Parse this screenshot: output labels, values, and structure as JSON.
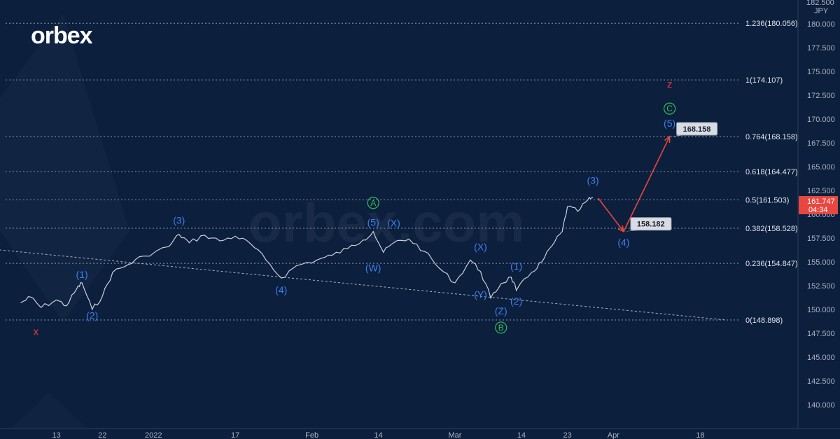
{
  "brand": {
    "logo_text": "orbex",
    "watermark_text": "orbex.com"
  },
  "currency_label": "JPY",
  "top_price_label": "182.500",
  "current_price": {
    "value": "161.747",
    "countdown": "04:34"
  },
  "colors": {
    "background": "#0c1f3d",
    "wave_blue": "#3f7ef0",
    "wave_red": "#e83b3b",
    "wave_green": "#2dbf5b",
    "price_tag": "#e8473f",
    "arrow": "#e8473f"
  },
  "chart_data": {
    "type": "line",
    "instrument_currency": "JPY",
    "y_axis": {
      "ylim": [
        137.5,
        182.5
      ],
      "ticks": [
        "140.000",
        "142.500",
        "145.000",
        "147.500",
        "150.000",
        "152.500",
        "155.000",
        "157.500",
        "160.000",
        "162.500",
        "165.000",
        "167.500",
        "170.000",
        "172.500",
        "175.000",
        "177.500",
        "180.000"
      ]
    },
    "x_axis": {
      "tick_labels": [
        "13",
        "22",
        "2022",
        "17",
        "Feb",
        "14",
        "Mar",
        "14",
        "23",
        "Apr",
        "18"
      ]
    },
    "price_path": [
      {
        "date": "2021-12-06",
        "price": 150.7
      },
      {
        "date": "2021-12-08",
        "price": 151.3
      },
      {
        "date": "2021-12-10",
        "price": 150.2
      },
      {
        "date": "2021-12-13",
        "price": 151.0
      },
      {
        "date": "2021-12-15",
        "price": 150.4
      },
      {
        "date": "2021-12-17",
        "price": 152.2
      },
      {
        "date": "2021-12-18",
        "price": 152.8
      },
      {
        "date": "2021-12-20",
        "price": 150.0
      },
      {
        "date": "2021-12-22",
        "price": 151.4
      },
      {
        "date": "2021-12-24",
        "price": 153.9
      },
      {
        "date": "2021-12-27",
        "price": 154.7
      },
      {
        "date": "2021-12-30",
        "price": 155.6
      },
      {
        "date": "2022-01-04",
        "price": 156.6
      },
      {
        "date": "2022-01-06",
        "price": 157.9
      },
      {
        "date": "2022-01-08",
        "price": 157.0
      },
      {
        "date": "2022-01-11",
        "price": 157.8
      },
      {
        "date": "2022-01-14",
        "price": 157.2
      },
      {
        "date": "2022-01-17",
        "price": 157.7
      },
      {
        "date": "2022-01-20",
        "price": 156.9
      },
      {
        "date": "2022-01-23",
        "price": 155.2
      },
      {
        "date": "2022-01-26",
        "price": 153.3
      },
      {
        "date": "2022-01-29",
        "price": 154.6
      },
      {
        "date": "2022-02-02",
        "price": 155.2
      },
      {
        "date": "2022-02-05",
        "price": 155.7
      },
      {
        "date": "2022-02-08",
        "price": 156.4
      },
      {
        "date": "2022-02-11",
        "price": 157.3
      },
      {
        "date": "2022-02-13",
        "price": 158.2
      },
      {
        "date": "2022-02-15",
        "price": 156.0
      },
      {
        "date": "2022-02-17",
        "price": 157.0
      },
      {
        "date": "2022-02-20",
        "price": 157.4
      },
      {
        "date": "2022-02-23",
        "price": 156.1
      },
      {
        "date": "2022-02-26",
        "price": 154.3
      },
      {
        "date": "2022-03-01",
        "price": 152.8
      },
      {
        "date": "2022-03-04",
        "price": 155.2
      },
      {
        "date": "2022-03-06",
        "price": 154.0
      },
      {
        "date": "2022-03-08",
        "price": 151.2
      },
      {
        "date": "2022-03-10",
        "price": 152.7
      },
      {
        "date": "2022-03-12",
        "price": 153.4
      },
      {
        "date": "2022-03-13",
        "price": 152.0
      },
      {
        "date": "2022-03-16",
        "price": 153.9
      },
      {
        "date": "2022-03-18",
        "price": 155.0
      },
      {
        "date": "2022-03-20",
        "price": 156.7
      },
      {
        "date": "2022-03-22",
        "price": 158.2
      },
      {
        "date": "2022-03-23",
        "price": 160.8
      },
      {
        "date": "2022-03-25",
        "price": 160.3
      },
      {
        "date": "2022-03-27",
        "price": 161.5
      },
      {
        "date": "2022-03-28",
        "price": 161.75
      }
    ],
    "fib_levels": [
      {
        "label": "1.236(180.056)",
        "value": 180.056
      },
      {
        "label": "1(174.107)",
        "value": 174.107
      },
      {
        "label": "0.764(168.158)",
        "value": 168.158
      },
      {
        "label": "0.618(164.477)",
        "value": 164.477
      },
      {
        "label": "0.5(161.503)",
        "value": 161.503
      },
      {
        "label": "0.382(158.528)",
        "value": 158.528
      },
      {
        "label": "0.236(154.847)",
        "value": 154.847
      },
      {
        "label": "0(148.898)",
        "value": 148.898
      }
    ],
    "trendline": [
      {
        "date": "2021-12-01",
        "price": 156.3
      },
      {
        "date": "2022-04-23",
        "price": 148.9
      }
    ],
    "projection": [
      {
        "date": "2022-03-29",
        "price": 161.7
      },
      {
        "date": "2022-04-03",
        "price": 158.182
      },
      {
        "date": "2022-04-12",
        "price": 168.158
      }
    ],
    "callouts": [
      {
        "text": "158.182",
        "date": "2022-04-03",
        "price": 158.182
      },
      {
        "text": "168.158",
        "date": "2022-04-12",
        "price": 168.158
      }
    ],
    "wave_labels": [
      {
        "text": "x",
        "style": "red",
        "date": "2021-12-09",
        "price": 147.3
      },
      {
        "text": "(1)",
        "style": "blue",
        "date": "2021-12-18",
        "price": 153.3
      },
      {
        "text": "(2)",
        "style": "blue",
        "date": "2021-12-20",
        "price": 149.0
      },
      {
        "text": "(3)",
        "style": "blue",
        "date": "2022-01-06",
        "price": 159.0
      },
      {
        "text": "(4)",
        "style": "blue",
        "date": "2022-01-26",
        "price": 151.7
      },
      {
        "text": "A",
        "style": "green",
        "date": "2022-02-13",
        "price": 160.9
      },
      {
        "text": "(5)",
        "style": "blue",
        "date": "2022-02-13",
        "price": 158.8
      },
      {
        "text": "(X)",
        "style": "blue",
        "date": "2022-02-17",
        "price": 158.7
      },
      {
        "text": "(W)",
        "style": "blue",
        "date": "2022-02-13",
        "price": 154.0
      },
      {
        "text": "(X)",
        "style": "blue",
        "date": "2022-03-06",
        "price": 156.2
      },
      {
        "text": "(Y)",
        "style": "blue",
        "date": "2022-03-06",
        "price": 151.2
      },
      {
        "text": "(1)",
        "style": "blue",
        "date": "2022-03-13",
        "price": 154.2
      },
      {
        "text": "(2)",
        "style": "blue",
        "date": "2022-03-13",
        "price": 150.5
      },
      {
        "text": "(Z)",
        "style": "blue",
        "date": "2022-03-10",
        "price": 149.5
      },
      {
        "text": "B",
        "style": "green",
        "date": "2022-03-10",
        "price": 147.8
      },
      {
        "text": "(3)",
        "style": "blue",
        "date": "2022-03-28",
        "price": 163.2
      },
      {
        "text": "(4)",
        "style": "blue",
        "date": "2022-04-03",
        "price": 156.7
      },
      {
        "text": "z",
        "style": "red",
        "date": "2022-04-12",
        "price": 173.3
      },
      {
        "text": "C",
        "style": "green",
        "date": "2022-04-12",
        "price": 170.8
      },
      {
        "text": "(5)",
        "style": "blue",
        "date": "2022-04-12",
        "price": 169.2
      }
    ]
  }
}
